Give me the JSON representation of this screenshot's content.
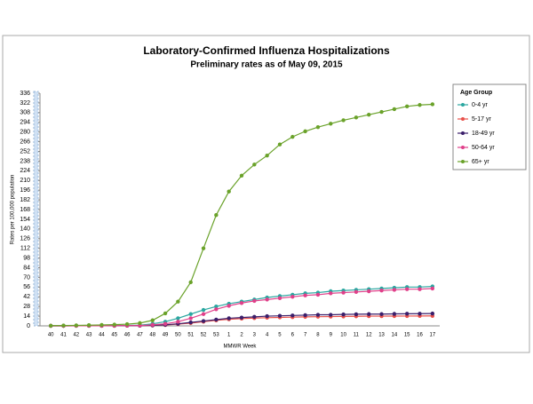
{
  "chart_data": {
    "type": "line",
    "title": "Laboratory-Confirmed Influenza Hospitalizations",
    "subtitle": "Preliminary rates as of May 09, 2015",
    "x_label": "MMWR Week",
    "y_label": "Rates per 100,000 population",
    "legend_title": "Age Group",
    "legend_position": "right",
    "grid": false,
    "categories": [
      "40",
      "41",
      "42",
      "43",
      "44",
      "45",
      "46",
      "47",
      "48",
      "49",
      "50",
      "51",
      "52",
      "53",
      "1",
      "2",
      "3",
      "4",
      "5",
      "6",
      "7",
      "8",
      "9",
      "10",
      "11",
      "12",
      "13",
      "14",
      "15",
      "16",
      "17"
    ],
    "ylim": [
      0,
      336
    ],
    "yticks": [
      0,
      14,
      28,
      42,
      56,
      70,
      84,
      98,
      112,
      126,
      140,
      154,
      168,
      182,
      196,
      210,
      224,
      238,
      252,
      266,
      280,
      294,
      308,
      322,
      336
    ],
    "series": [
      {
        "name": "0-4 yr",
        "color": "#2aa7a0",
        "values": [
          0.1,
          0.1,
          0.2,
          0.2,
          0.3,
          0.4,
          0.6,
          1,
          3,
          6,
          11,
          17,
          23,
          28,
          32,
          35,
          38,
          41,
          43,
          45,
          47,
          48,
          50,
          51,
          52,
          53,
          54,
          55,
          56,
          56,
          57
        ]
      },
      {
        "name": "5-17 yr",
        "color": "#e8504a",
        "values": [
          0,
          0,
          0.1,
          0.1,
          0.1,
          0.1,
          0.2,
          0.3,
          0.6,
          1.2,
          2.5,
          4,
          6,
          8,
          9.5,
          10.5,
          11.2,
          11.8,
          12.2,
          12.6,
          13,
          13.2,
          13.4,
          13.6,
          13.8,
          14,
          14,
          14.1,
          14.2,
          14.3,
          14.4
        ]
      },
      {
        "name": "18-49 yr",
        "color": "#3b1f6b",
        "values": [
          0,
          0,
          0.1,
          0.1,
          0.1,
          0.1,
          0.2,
          0.3,
          0.7,
          1.5,
          3,
          5,
          7,
          9,
          11,
          12,
          13,
          14,
          14.5,
          15,
          15.5,
          16,
          16,
          16.5,
          16.8,
          17,
          17,
          17.3,
          17.5,
          17.6,
          17.8
        ]
      },
      {
        "name": "50-64 yr",
        "color": "#e0408a",
        "values": [
          0.1,
          0.1,
          0.1,
          0.2,
          0.2,
          0.3,
          0.4,
          0.5,
          1.5,
          3,
          6,
          11,
          17,
          24,
          29,
          33,
          36,
          38,
          40,
          42,
          44,
          45,
          47,
          48,
          49,
          50,
          51,
          52,
          53,
          53,
          54
        ]
      },
      {
        "name": "65+ yr",
        "color": "#6aa22a",
        "values": [
          0.3,
          0.5,
          0.7,
          1,
          1.3,
          1.8,
          2.5,
          4,
          8,
          18,
          35,
          63,
          112,
          160,
          194,
          217,
          233,
          246,
          262,
          273,
          281,
          287,
          292,
          297,
          301,
          305,
          309,
          313,
          317,
          319,
          320
        ]
      }
    ]
  }
}
